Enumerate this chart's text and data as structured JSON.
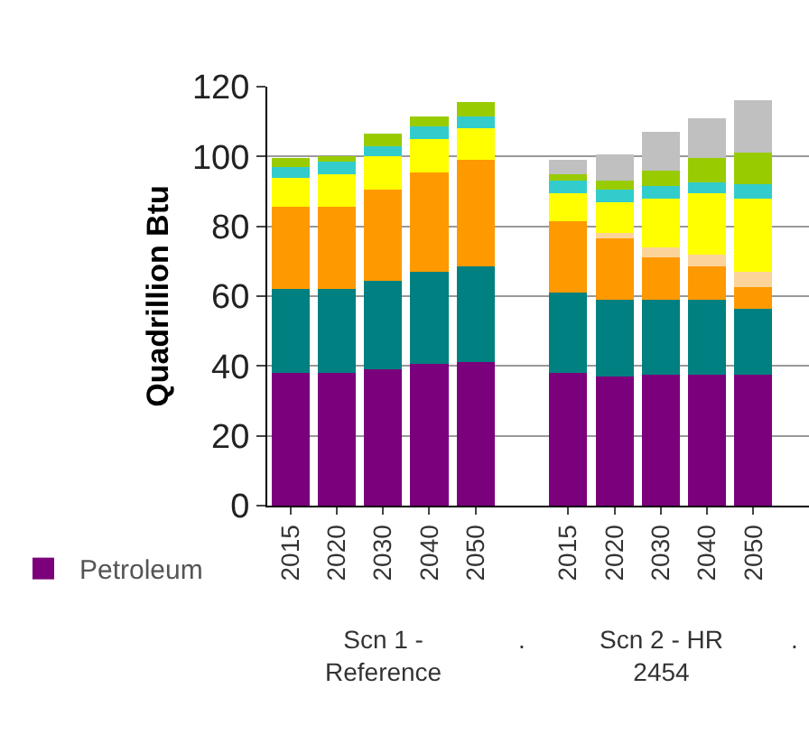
{
  "chart_data": {
    "type": "bar",
    "stacked": true,
    "ylabel": "Quadrillion Btu",
    "categories": [
      "2015",
      "2020",
      "2030",
      "2040",
      "2050",
      null,
      "2015",
      "2020",
      "2030",
      "2040",
      "2050"
    ],
    "series": [
      {
        "name": "Petroleum",
        "color": "#7b007b",
        "values": [
          38,
          38,
          39,
          40.5,
          41,
          null,
          38,
          37,
          37.5,
          37.5,
          37.5
        ]
      },
      {
        "color": "#008080",
        "values": [
          24,
          24,
          25.5,
          26.5,
          27.5,
          null,
          23,
          22,
          21.5,
          21.5,
          19
        ]
      },
      {
        "color": "#ff9900",
        "values": [
          23.5,
          23.5,
          26,
          28.5,
          30.5,
          null,
          20.5,
          17.5,
          12,
          9.5,
          6
        ]
      },
      {
        "color": "#fcd49a",
        "values": [
          null,
          null,
          null,
          null,
          null,
          null,
          null,
          1.5,
          3,
          3.5,
          4.5
        ]
      },
      {
        "color": "#ffff00",
        "values": [
          8.5,
          9.5,
          9.5,
          9.5,
          9,
          null,
          8,
          9,
          14,
          17.5,
          21
        ]
      },
      {
        "color": "#33cccc",
        "values": [
          3,
          3.5,
          3,
          3.5,
          3.5,
          null,
          3.5,
          3.5,
          3.5,
          3,
          4
        ]
      },
      {
        "color": "#99cc00",
        "values": [
          2.5,
          1.5,
          3.5,
          3,
          4,
          null,
          2,
          2.5,
          4.5,
          7,
          9
        ]
      },
      {
        "color": "#c0c0c0",
        "values": [
          null,
          null,
          null,
          null,
          null,
          null,
          4,
          7.5,
          11,
          11.5,
          15
        ]
      }
    ],
    "ylim": [
      0,
      120
    ],
    "yticks": [
      0,
      20,
      40,
      60,
      80,
      100,
      120
    ],
    "grid": "y",
    "legend": "bottom left",
    "annotations": [
      "Scn 1 -\nReference",
      ".",
      "Scn 2 - HR\n2454",
      "."
    ]
  }
}
